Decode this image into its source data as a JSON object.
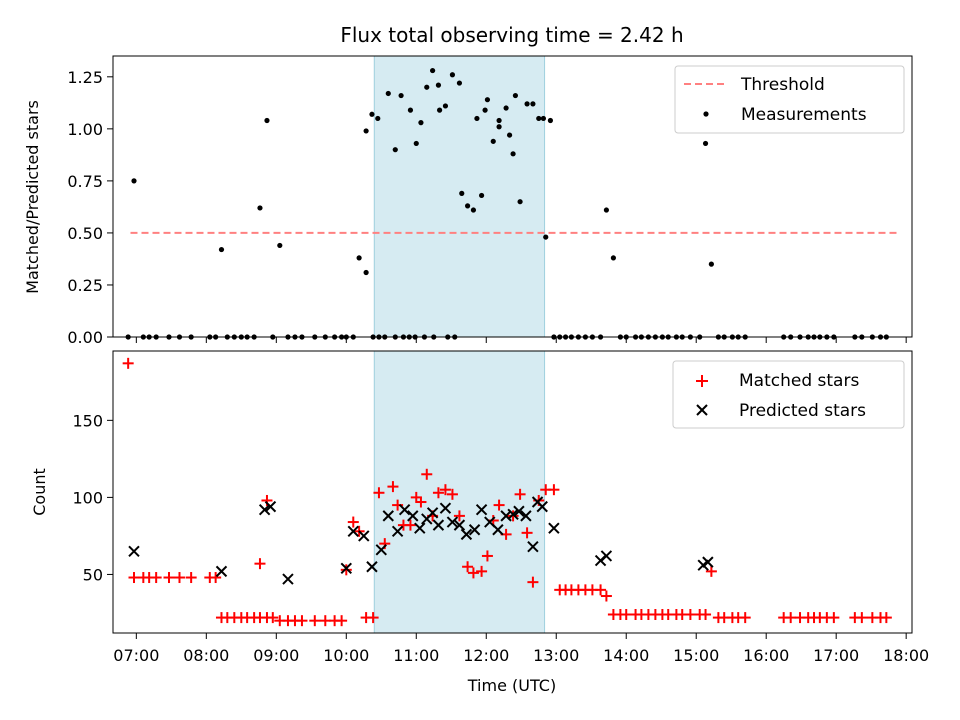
{
  "chart_data": [
    {
      "type": "scatter",
      "title": "Flux total observing time = 2.42 h",
      "ylabel": "Matched/Predicted stars",
      "xlim": [
        "06:40",
        "18:05"
      ],
      "ylim": [
        0,
        1.35
      ],
      "yticks": [
        0.0,
        0.25,
        0.5,
        0.75,
        1.0,
        1.25
      ],
      "ytick_labels": [
        "0.00",
        "0.25",
        "0.50",
        "0.75",
        "1.00",
        "1.25"
      ],
      "grid": false,
      "legend_position": "top-right",
      "highlight_span": {
        "start": "10:24",
        "end": "12:50",
        "color": "#add8e6"
      },
      "series": [
        {
          "name": "Threshold",
          "kind": "dashed-line",
          "color": "#ff8080",
          "x": [
            "06:55",
            "17:55"
          ],
          "y": [
            0.5,
            0.5
          ]
        },
        {
          "name": "Measurements",
          "kind": "dots",
          "color": "#000000",
          "x": [
            "06:53",
            "06:58",
            "07:06",
            "07:11",
            "07:17",
            "07:28",
            "07:37",
            "07:47",
            "08:03",
            "08:08",
            "08:13",
            "08:18",
            "08:24",
            "08:30",
            "08:35",
            "08:41",
            "08:46",
            "08:52",
            "08:57",
            "09:03",
            "09:10",
            "09:16",
            "09:22",
            "09:33",
            "09:42",
            "09:50",
            "09:56",
            "10:00",
            "10:06",
            "10:11",
            "10:17",
            "10:23",
            "10:28",
            "10:33",
            "10:42",
            "10:49",
            "10:54",
            "10:59",
            "11:07",
            "11:15",
            "11:20",
            "11:27",
            "11:33",
            "11:39",
            "11:44",
            "11:49",
            "11:56",
            "12:01",
            "12:06",
            "12:11",
            "12:17",
            "12:23",
            "12:29",
            "12:35",
            "12:40",
            "12:45",
            "12:51",
            "12:58",
            "13:03",
            "13:08",
            "13:13",
            "13:19",
            "13:25",
            "13:31",
            "13:38",
            "13:43",
            "13:49",
            "13:55",
            "14:00",
            "14:08",
            "14:13",
            "14:19",
            "14:25",
            "14:31",
            "14:36",
            "14:43",
            "14:48",
            "14:55",
            "15:03",
            "15:08",
            "15:13",
            "15:19",
            "15:24",
            "15:31",
            "15:36",
            "15:42",
            "16:15",
            "16:21",
            "16:29",
            "16:36",
            "16:41",
            "16:46",
            "16:52",
            "16:58",
            "17:16",
            "17:22",
            "17:31",
            "17:38",
            "17:43"
          ],
          "y": [
            0.0,
            0.75,
            0.0,
            0.0,
            0.0,
            0.0,
            0.0,
            0.0,
            0.0,
            0.0,
            0.42,
            0.0,
            0.0,
            0.0,
            0.0,
            0.0,
            0.62,
            1.04,
            0.0,
            0.44,
            0.0,
            0.0,
            0.0,
            0.0,
            0.0,
            0.0,
            0.0,
            0.0,
            0.0,
            0.38,
            0.31,
            0.0,
            0.0,
            0.0,
            0.0,
            0.0,
            0.0,
            0.0,
            0.0,
            0.0,
            1.09,
            0.0,
            0.0,
            0.69,
            0.63,
            0.61,
            0.68,
            1.14,
            0.94,
            1.01,
            1.1,
            0.88,
            0.65,
            1.12,
            1.12,
            1.05,
            0.48,
            0.0,
            0.0,
            0.0,
            0.0,
            0.0,
            0.0,
            0.0,
            0.0,
            0.61,
            0.38,
            0.0,
            0.0,
            0.0,
            0.0,
            0.0,
            0.0,
            0.0,
            0.0,
            0.0,
            0.0,
            0.0,
            0.0,
            0.93,
            0.35,
            0.0,
            0.0,
            0.0,
            0.0,
            0.0,
            0.0,
            0.0,
            0.0,
            0.0,
            0.0,
            0.0,
            0.0,
            0.0,
            0.0,
            0.0,
            0.0,
            0.0,
            0.0
          ],
          "x_extra": [
            "10:17",
            "10:22",
            "10:27",
            "10:36",
            "10:42",
            "10:47",
            "10:55",
            "11:00",
            "11:04",
            "11:09",
            "11:14",
            "11:19",
            "11:25",
            "11:31",
            "11:37",
            "11:52",
            "11:59",
            "12:25",
            "12:49",
            "12:55",
            "12:11",
            "12:20"
          ],
          "y_extra": [
            0.99,
            1.07,
            1.05,
            1.17,
            0.9,
            1.16,
            1.09,
            0.93,
            1.03,
            1.2,
            1.28,
            1.21,
            1.11,
            1.26,
            1.22,
            1.05,
            1.09,
            1.16,
            1.05,
            1.04,
            1.04,
            0.97
          ]
        }
      ]
    },
    {
      "type": "scatter",
      "xlabel": "Time (UTC)",
      "ylabel": "Count",
      "xlim": [
        "06:40",
        "18:05"
      ],
      "ylim": [
        12,
        195
      ],
      "xticks": [
        "07:00",
        "08:00",
        "09:00",
        "10:00",
        "11:00",
        "12:00",
        "13:00",
        "14:00",
        "15:00",
        "16:00",
        "17:00",
        "18:00"
      ],
      "yticks": [
        50,
        100,
        150
      ],
      "grid": false,
      "legend_position": "top-right",
      "highlight_span": {
        "start": "10:24",
        "end": "12:50",
        "color": "#add8e6"
      },
      "series": [
        {
          "name": "Matched stars",
          "marker": "+",
          "color": "#ff0000",
          "x": [
            "06:53",
            "06:58",
            "07:06",
            "07:11",
            "07:17",
            "07:28",
            "07:37",
            "07:47",
            "08:03",
            "08:08",
            "08:13",
            "08:18",
            "08:24",
            "08:30",
            "08:35",
            "08:41",
            "08:46",
            "08:52",
            "08:57",
            "08:46",
            "08:52",
            "09:03",
            "09:10",
            "09:16",
            "09:22",
            "09:33",
            "09:42",
            "09:50",
            "09:56",
            "10:00",
            "10:06",
            "10:11",
            "10:17",
            "10:23",
            "10:28",
            "10:33",
            "10:40",
            "10:44",
            "10:49",
            "10:55",
            "11:00",
            "11:04",
            "11:09",
            "11:14",
            "11:19",
            "11:25",
            "11:31",
            "11:37",
            "11:44",
            "11:49",
            "11:56",
            "12:01",
            "12:06",
            "12:11",
            "12:17",
            "12:23",
            "12:29",
            "12:35",
            "12:40",
            "12:45",
            "12:51",
            "12:58",
            "13:03",
            "13:08",
            "13:13",
            "13:19",
            "13:25",
            "13:31",
            "13:38",
            "13:43",
            "13:49",
            "13:55",
            "14:00",
            "14:08",
            "14:13",
            "14:19",
            "14:25",
            "14:31",
            "14:36",
            "14:43",
            "14:48",
            "14:55",
            "15:03",
            "15:08",
            "15:13",
            "15:19",
            "15:24",
            "15:31",
            "15:36",
            "15:42",
            "16:15",
            "16:21",
            "16:29",
            "16:36",
            "16:41",
            "16:46",
            "16:52",
            "16:58",
            "17:16",
            "17:22",
            "17:31",
            "17:38",
            "17:43"
          ],
          "y": [
            187,
            48,
            48,
            48,
            48,
            48,
            48,
            48,
            48,
            48,
            22,
            22,
            22,
            22,
            22,
            22,
            22,
            22,
            22,
            57,
            98,
            20,
            20,
            20,
            20,
            20,
            20,
            20,
            20,
            53,
            84,
            78,
            22,
            22,
            103,
            70,
            107,
            95,
            82,
            82,
            100,
            97,
            115,
            88,
            103,
            105,
            102,
            88,
            55,
            51,
            52,
            62,
            85,
            95,
            76,
            88,
            102,
            77,
            45,
            98,
            105,
            105,
            40,
            40,
            40,
            40,
            40,
            40,
            40,
            36,
            24,
            24,
            24,
            24,
            24,
            24,
            24,
            24,
            24,
            24,
            24,
            24,
            24,
            24,
            52,
            22,
            22,
            22,
            22,
            22,
            22,
            22,
            22,
            22,
            22,
            22,
            22,
            22,
            22,
            22,
            22,
            22,
            22
          ]
        },
        {
          "name": "Predicted stars",
          "marker": "x",
          "color": "#000000",
          "x": [
            "06:58",
            "08:13",
            "08:50",
            "08:55",
            "09:10",
            "10:00",
            "10:06",
            "10:15",
            "10:22",
            "10:30",
            "10:36",
            "10:44",
            "10:50",
            "10:57",
            "11:03",
            "11:09",
            "11:14",
            "11:19",
            "11:25",
            "11:31",
            "11:37",
            "11:43",
            "11:50",
            "11:56",
            "12:03",
            "12:10",
            "12:17",
            "12:23",
            "12:28",
            "12:34",
            "12:40",
            "12:44",
            "12:48",
            "12:58",
            "13:38",
            "13:43",
            "15:06",
            "15:10"
          ],
          "y": [
            65,
            52,
            92,
            94,
            47,
            54,
            78,
            75,
            55,
            66,
            88,
            78,
            92,
            88,
            80,
            86,
            90,
            82,
            93,
            84,
            82,
            76,
            79,
            92,
            84,
            79,
            88,
            89,
            91,
            88,
            68,
            97,
            94,
            80,
            59,
            62,
            56,
            58
          ]
        }
      ]
    }
  ]
}
